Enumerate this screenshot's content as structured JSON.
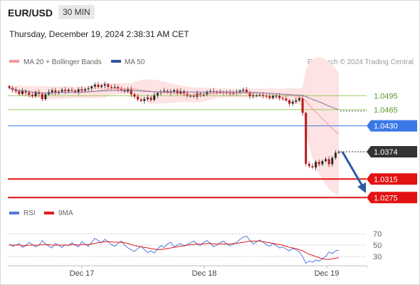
{
  "header": {
    "pair": "EUR/USD",
    "timeframe": "30 MIN",
    "datetime": "Thursday, December 19, 2024 2:38:31 AM CET"
  },
  "legend": {
    "ma20": "MA 20 + Bollinger Bands",
    "ma50": "MA 50",
    "copyright": "Research © 2024 Trading Central",
    "rsi": "RSI",
    "ma9": "9MA"
  },
  "colors": {
    "candle_up": "#2b2b2b",
    "candle_down": "#b51919",
    "ma20": "#f19a9a",
    "bollinger_fill": "#fde3e3",
    "ma50": "#7a7aa0",
    "rsi": "#5577dd",
    "rsi_ma": "#e01b1b",
    "level_green": "#9ccc65",
    "level_blue": "#3b78e7",
    "level_red": "#e31212",
    "current": "#333333",
    "arrow": "#2a5aa6"
  },
  "chart_data": [
    {
      "type": "candlestick",
      "ylim": [
        1.024,
        1.0548
      ],
      "x_tick_labels": [
        "Dec 17",
        "Dec 18",
        "Dec 19"
      ],
      "levels": [
        {
          "value": 1.0495,
          "label": "1.0495",
          "kind": "resistance-green"
        },
        {
          "value": 1.0465,
          "label": "1.0465",
          "kind": "resistance-green"
        },
        {
          "value": 1.043,
          "label": "1.0430",
          "kind": "resistance-blue"
        },
        {
          "value": 1.0374,
          "label": "1.0374",
          "kind": "current"
        },
        {
          "value": 1.0315,
          "label": "1.0315",
          "kind": "support-red"
        },
        {
          "value": 1.0275,
          "label": "1.0275",
          "kind": "support-red"
        }
      ],
      "close": [
        1.0512,
        1.0508,
        1.0505,
        1.0499,
        1.0506,
        1.0502,
        1.0497,
        1.0494,
        1.0503,
        1.0499,
        1.0488,
        1.0498,
        1.0503,
        1.0507,
        1.0501,
        1.0504,
        1.0508,
        1.0505,
        1.0508,
        1.0506,
        1.0503,
        1.0509,
        1.0506,
        1.0509,
        1.0511,
        1.0515,
        1.0519,
        1.0514,
        1.0517,
        1.052,
        1.0514,
        1.0512,
        1.0514,
        1.051,
        1.0508,
        1.0504,
        1.0509,
        1.0498,
        1.0493,
        1.0487,
        1.0484,
        1.0488,
        1.0491,
        1.0486,
        1.0496,
        1.0501,
        1.0504,
        1.0506,
        1.0502,
        1.0504,
        1.0507,
        1.05,
        1.0505,
        1.05,
        1.0495,
        1.0495,
        1.0493,
        1.05,
        1.0497,
        1.0497,
        1.0504,
        1.0505,
        1.0503,
        1.0502,
        1.0503,
        1.0502,
        1.0502,
        1.0499,
        1.0502,
        1.0503,
        1.0506,
        1.0508,
        1.0502,
        1.0494,
        1.0496,
        1.0496,
        1.0497,
        1.0495,
        1.0494,
        1.049,
        1.0495,
        1.0495,
        1.049,
        1.0489,
        1.0485,
        1.0478,
        1.0482,
        1.0485,
        1.049,
        1.0458,
        1.0348,
        1.0343,
        1.034,
        1.0352,
        1.0347,
        1.0354,
        1.0358,
        1.0347,
        1.0361,
        1.0372,
        1.0374
      ],
      "rsi": [
        52,
        48,
        50,
        53,
        46,
        49,
        55,
        51,
        47,
        50,
        58,
        52,
        48,
        45,
        53,
        50,
        46,
        51,
        49,
        54,
        50,
        47,
        56,
        52,
        48,
        55,
        62,
        58,
        54,
        60,
        56,
        51,
        48,
        53,
        57,
        50,
        45,
        42,
        39,
        44,
        48,
        42,
        37,
        40,
        36,
        43,
        49,
        46,
        52,
        55,
        47,
        50,
        53,
        48,
        51,
        54,
        57,
        52,
        49,
        55,
        58,
        53,
        47,
        50,
        54,
        57,
        52,
        49,
        51,
        55,
        60,
        64,
        66,
        58,
        52,
        56,
        59,
        55,
        51,
        48,
        53,
        49,
        45,
        47,
        43,
        40,
        44,
        42,
        38,
        30,
        18,
        22,
        20,
        24,
        22,
        26,
        30,
        38,
        35,
        40,
        41
      ],
      "rsi_ma": [
        50,
        50,
        50,
        50,
        49,
        49,
        50,
        50,
        50,
        50,
        51,
        51,
        51,
        50,
        50,
        50,
        50,
        50,
        50,
        51,
        51,
        50,
        51,
        51,
        51,
        52,
        53,
        54,
        55,
        56,
        56,
        56,
        55,
        55,
        55,
        54,
        53,
        51,
        49,
        48,
        47,
        46,
        45,
        44,
        43,
        42,
        42,
        43,
        44,
        45,
        46,
        47,
        48,
        49,
        50,
        51,
        51,
        52,
        52,
        52,
        53,
        53,
        52,
        52,
        52,
        52,
        52,
        52,
        53,
        53,
        54,
        55,
        56,
        57,
        57,
        57,
        57,
        56,
        55,
        54,
        53,
        52,
        51,
        50,
        48,
        46,
        45,
        44,
        42,
        40,
        37,
        34,
        32,
        30,
        28,
        26,
        25,
        25,
        26,
        27,
        28
      ]
    }
  ]
}
